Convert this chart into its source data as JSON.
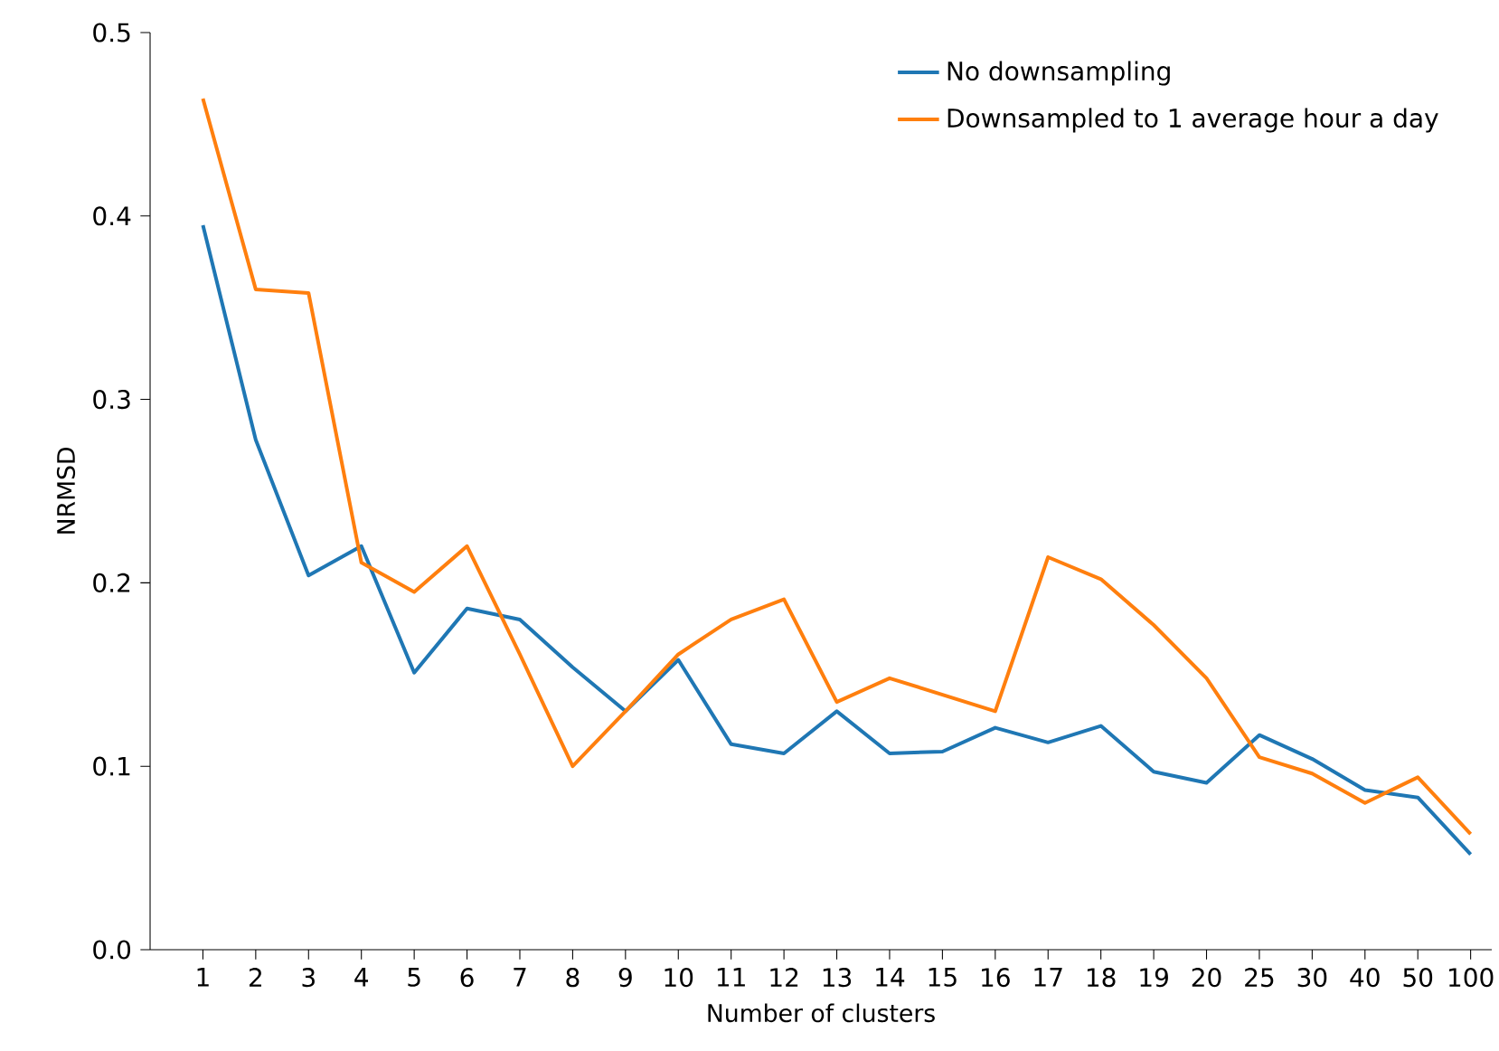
{
  "chart_data": {
    "type": "line",
    "xlabel": "Number of clusters",
    "ylabel": "NRMSD",
    "categories": [
      "1",
      "2",
      "3",
      "4",
      "5",
      "6",
      "7",
      "8",
      "9",
      "10",
      "11",
      "12",
      "13",
      "14",
      "15",
      "16",
      "17",
      "18",
      "19",
      "20",
      "25",
      "30",
      "40",
      "50",
      "100"
    ],
    "series": [
      {
        "name": "No downsampling",
        "color": "#1f77b4",
        "values": [
          0.395,
          0.278,
          0.204,
          0.22,
          0.151,
          0.186,
          0.18,
          0.154,
          0.13,
          0.158,
          0.112,
          0.107,
          0.13,
          0.107,
          0.108,
          0.121,
          0.113,
          0.122,
          0.097,
          0.091,
          0.117,
          0.104,
          0.087,
          0.083,
          0.052
        ]
      },
      {
        "name": "Downsampled to 1 average hour a day",
        "color": "#ff7f0e",
        "values": [
          0.464,
          0.36,
          0.358,
          0.211,
          0.195,
          0.22,
          0.161,
          0.1,
          0.13,
          0.161,
          0.18,
          0.191,
          0.135,
          0.148,
          0.139,
          0.13,
          0.214,
          0.202,
          0.177,
          0.148,
          0.105,
          0.096,
          0.08,
          0.094,
          0.063
        ]
      }
    ],
    "ylim": [
      0,
      0.5
    ],
    "yticks": [
      {
        "value": 0,
        "label": "0.0"
      },
      0.1,
      0.2,
      0.3,
      0.4,
      0.5
    ],
    "legend": "top right",
    "marker": "none",
    "line_style": "solid",
    "grid": false
  }
}
